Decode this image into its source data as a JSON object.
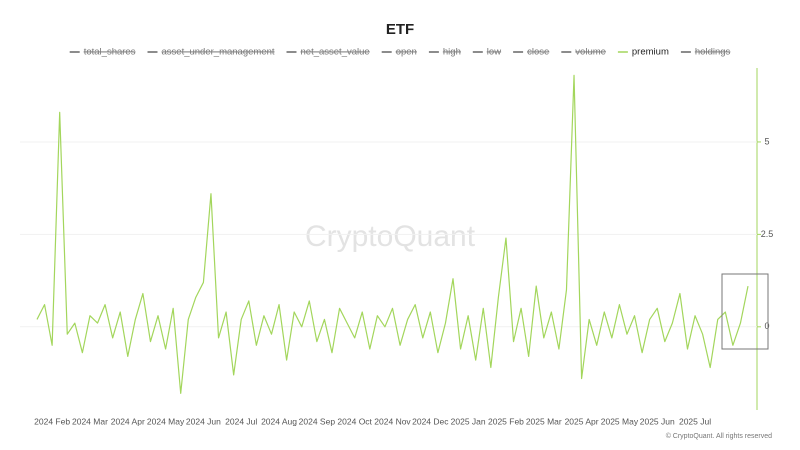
{
  "chart_data": {
    "type": "line",
    "title": "ETF",
    "watermark": "CryptoQuant",
    "footer": "© CryptoQuant. All rights reserved",
    "series": [
      {
        "name": "total_shares",
        "visible": false
      },
      {
        "name": "asset_under_management",
        "visible": false
      },
      {
        "name": "net_asset_value",
        "visible": false
      },
      {
        "name": "open",
        "visible": false
      },
      {
        "name": "high",
        "visible": false
      },
      {
        "name": "low",
        "visible": false
      },
      {
        "name": "close",
        "visible": false
      },
      {
        "name": "volume",
        "visible": false
      },
      {
        "name": "premium",
        "visible": true,
        "color": "#a3d65c",
        "axis": "y2",
        "values": [
          0.2,
          0.6,
          -0.5,
          5.8,
          -0.2,
          0.1,
          -0.7,
          0.3,
          0.1,
          0.6,
          -0.3,
          0.4,
          -0.8,
          0.2,
          0.9,
          -0.4,
          0.3,
          -0.6,
          0.5,
          -1.8,
          0.2,
          0.8,
          1.2,
          3.6,
          -0.3,
          0.4,
          -1.3,
          0.2,
          0.7,
          -0.5,
          0.3,
          -0.2,
          0.6,
          -0.9,
          0.4,
          0.0,
          0.7,
          -0.4,
          0.2,
          -0.7,
          0.5,
          0.1,
          -0.3,
          0.4,
          -0.6,
          0.3,
          0.0,
          0.5,
          -0.5,
          0.2,
          0.6,
          -0.3,
          0.4,
          -0.7,
          0.1,
          1.3,
          -0.6,
          0.3,
          -0.9,
          0.5,
          -1.1,
          0.8,
          2.4,
          -0.4,
          0.5,
          -0.8,
          1.1,
          -0.3,
          0.4,
          -0.6,
          1.0,
          6.8,
          -1.4,
          0.2,
          -0.5,
          0.4,
          -0.3,
          0.6,
          -0.2,
          0.3,
          -0.7,
          0.2,
          0.5,
          -0.4,
          0.1,
          0.9,
          -0.6,
          0.3,
          -0.2,
          -1.1,
          0.2,
          0.4,
          -0.5,
          0.1,
          1.1
        ]
      },
      {
        "name": "holdings",
        "visible": false
      }
    ],
    "categories": [
      null,
      null,
      "2024 Feb",
      null,
      null,
      null,
      null,
      "2024 Mar",
      null,
      null,
      null,
      null,
      "2024 Apr",
      null,
      null,
      null,
      null,
      "2024 May",
      null,
      null,
      null,
      null,
      "2024 Jun",
      null,
      null,
      null,
      null,
      "2024 Jul",
      null,
      null,
      null,
      null,
      "2024 Aug",
      null,
      null,
      null,
      null,
      "2024 Sep",
      null,
      null,
      null,
      null,
      "2024 Oct",
      null,
      null,
      null,
      null,
      "2024 Nov",
      null,
      null,
      null,
      null,
      "2024 Dec",
      null,
      null,
      null,
      null,
      "2025 Jan",
      null,
      null,
      null,
      null,
      "2025 Feb",
      null,
      null,
      null,
      null,
      "2025 Mar",
      null,
      null,
      null,
      null,
      "2025 Apr",
      null,
      null,
      null,
      null,
      "2025 May",
      null,
      null,
      null,
      null,
      "2025 Jun",
      null,
      null,
      null,
      null,
      "2025 Jul",
      null,
      null,
      null,
      null,
      null,
      null,
      null
    ],
    "y2lim": [
      -2.25,
      7
    ],
    "y2ticks": [
      0,
      2.5,
      5
    ],
    "grid": true
  }
}
